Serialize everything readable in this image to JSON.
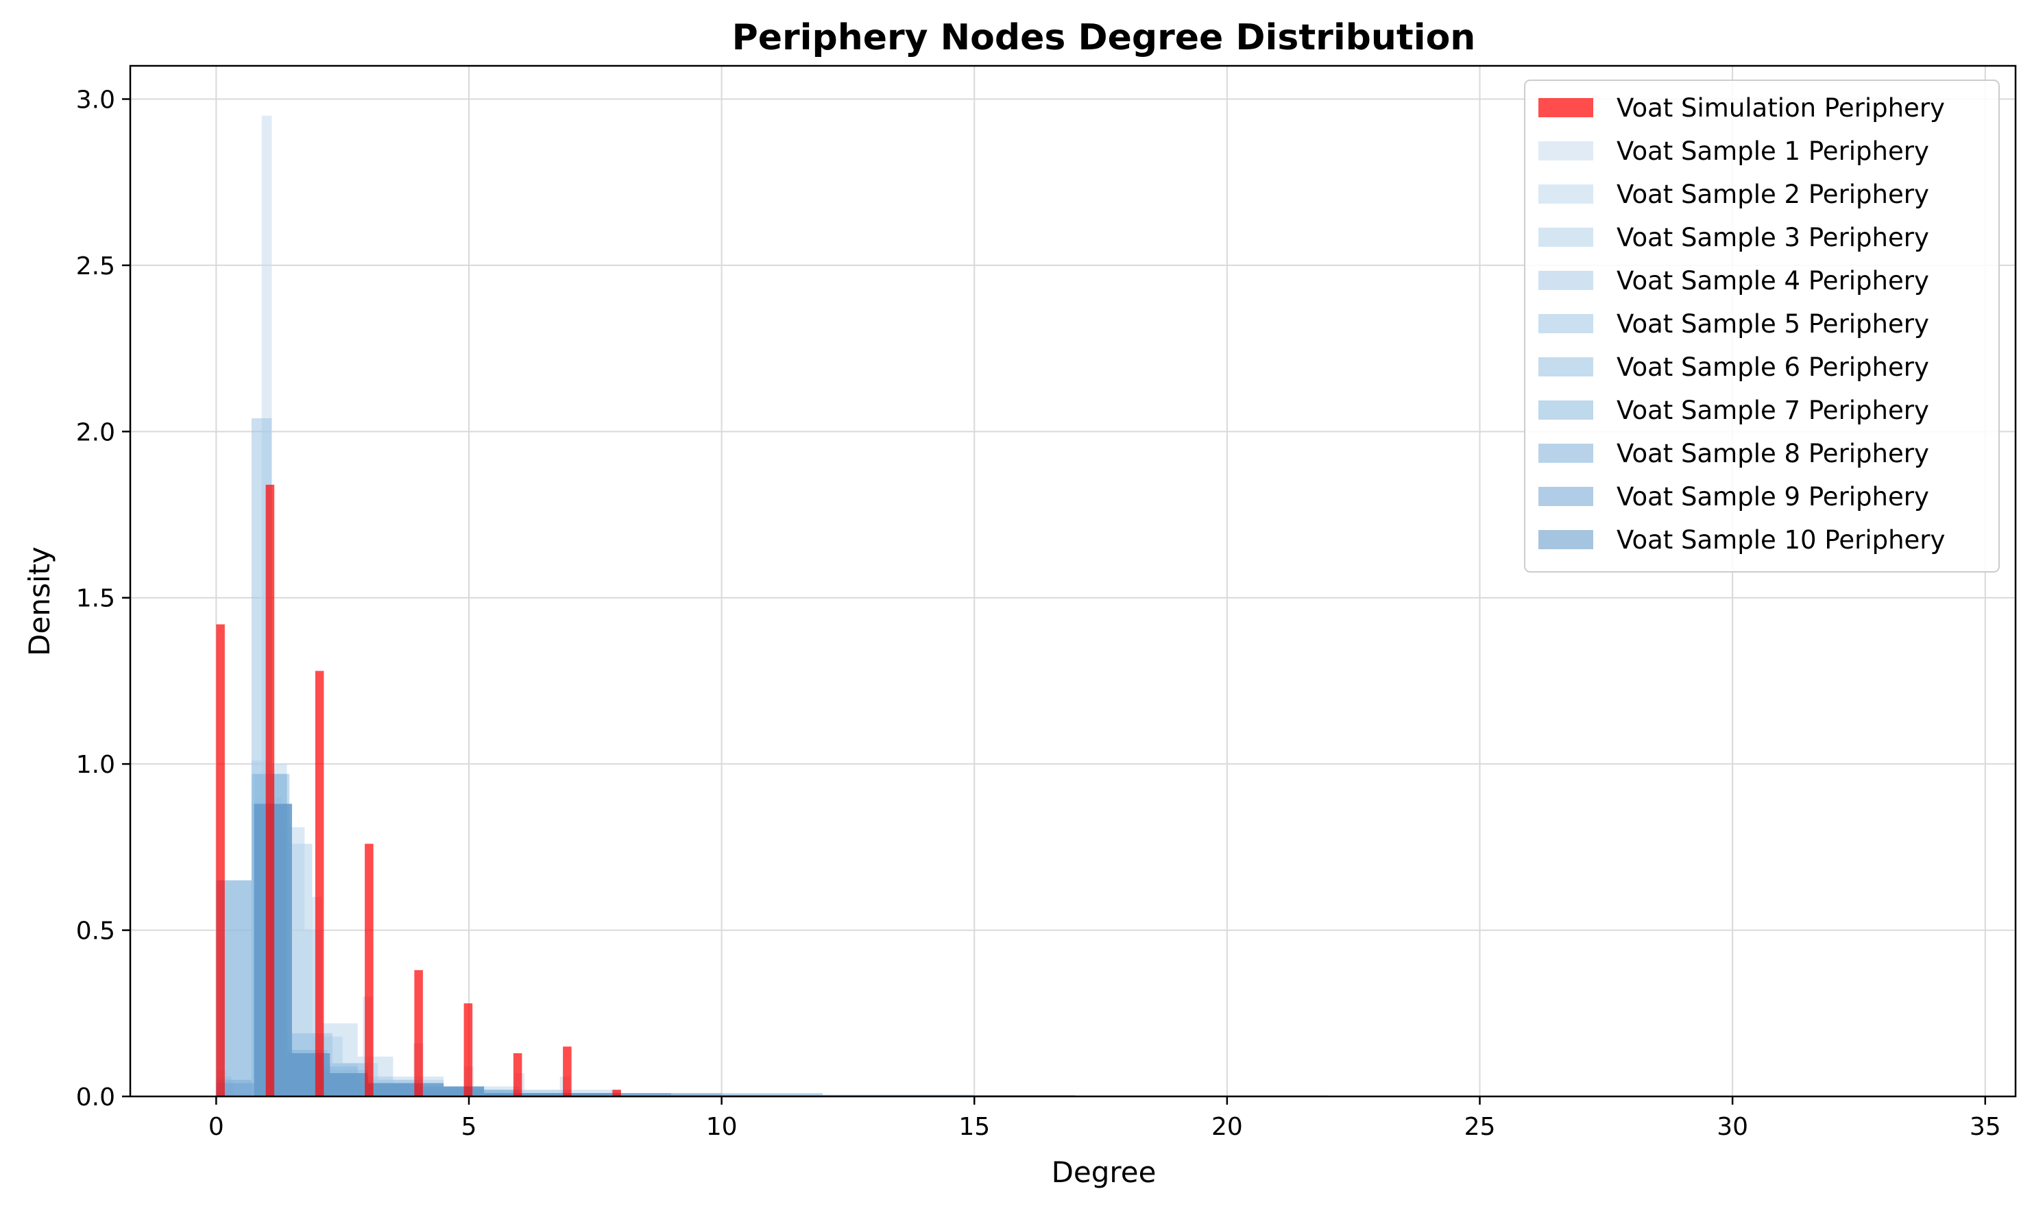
{
  "chart_data": {
    "type": "bar",
    "title": "Periphery Nodes Degree Distribution",
    "xlabel": "Degree",
    "ylabel": "Density",
    "xlim": [
      -1.7,
      35.6
    ],
    "ylim": [
      0,
      3.1
    ],
    "xticks": [
      0,
      5,
      10,
      15,
      20,
      25,
      30,
      35
    ],
    "xtick_labels": [
      "0",
      "5",
      "10",
      "15",
      "20",
      "25",
      "30",
      "35"
    ],
    "yticks": [
      0,
      0.5,
      1,
      1.5,
      2,
      2.5,
      3
    ],
    "ytick_labels": [
      "0.0",
      "0.5",
      "1.0",
      "1.5",
      "2.0",
      "2.5",
      "3.0"
    ],
    "grid": true,
    "legend_position": "top-right",
    "series": [
      {
        "name": "Voat Simulation Periphery",
        "color": "#ff0000",
        "alpha": 0.7,
        "bins": [
          {
            "x0": 0.0,
            "x1": 0.17,
            "y": 1.42
          },
          {
            "x0": 0.98,
            "x1": 1.15,
            "y": 1.84
          },
          {
            "x0": 1.96,
            "x1": 2.13,
            "y": 1.28
          },
          {
            "x0": 2.94,
            "x1": 3.11,
            "y": 0.76
          },
          {
            "x0": 3.92,
            "x1": 4.09,
            "y": 0.38
          },
          {
            "x0": 4.9,
            "x1": 5.07,
            "y": 0.28
          },
          {
            "x0": 5.88,
            "x1": 6.05,
            "y": 0.13
          },
          {
            "x0": 6.86,
            "x1": 7.03,
            "y": 0.15
          },
          {
            "x0": 7.84,
            "x1": 8.01,
            "y": 0.02
          }
        ]
      },
      {
        "name": "Voat Sample 1 Periphery",
        "color": "#c6dbef",
        "alpha": 0.55,
        "bins": [
          {
            "x0": 0.0,
            "x1": 0.2,
            "y": 0.08
          },
          {
            "x0": 0.9,
            "x1": 1.1,
            "y": 2.95
          },
          {
            "x0": 1.9,
            "x1": 2.1,
            "y": 0.6
          },
          {
            "x0": 2.9,
            "x1": 3.1,
            "y": 0.3
          },
          {
            "x0": 3.9,
            "x1": 4.1,
            "y": 0.16
          },
          {
            "x0": 4.9,
            "x1": 5.1,
            "y": 0.09
          },
          {
            "x0": 5.9,
            "x1": 6.1,
            "y": 0.07
          },
          {
            "x0": 6.8,
            "x1": 7.0,
            "y": 0.06
          },
          {
            "x0": 7.8,
            "x1": 8.0,
            "y": 0.02
          }
        ]
      },
      {
        "name": "Voat Sample 2 Periphery",
        "color": "#bdd7ec",
        "alpha": 0.55,
        "bins": [
          {
            "x0": 0.0,
            "x1": 0.35,
            "y": 0.05
          },
          {
            "x0": 0.7,
            "x1": 1.05,
            "y": 1.01
          },
          {
            "x0": 1.05,
            "x1": 1.4,
            "y": 1.0
          },
          {
            "x0": 1.4,
            "x1": 1.75,
            "y": 0.81
          },
          {
            "x0": 1.75,
            "x1": 2.1,
            "y": 0.5
          },
          {
            "x0": 2.1,
            "x1": 2.45,
            "y": 0.22
          },
          {
            "x0": 2.45,
            "x1": 2.8,
            "y": 0.22
          },
          {
            "x0": 2.8,
            "x1": 3.5,
            "y": 0.12
          },
          {
            "x0": 3.5,
            "x1": 4.5,
            "y": 0.06
          },
          {
            "x0": 4.5,
            "x1": 6.0,
            "y": 0.03
          },
          {
            "x0": 6.0,
            "x1": 8.0,
            "y": 0.02
          },
          {
            "x0": 8.0,
            "x1": 10.0,
            "y": 0.01
          }
        ]
      },
      {
        "name": "Voat Sample 3 Periphery",
        "color": "#b3d1ea",
        "alpha": 0.55,
        "bins": [
          {
            "x0": 0.8,
            "x1": 1.3,
            "y": 0.9
          },
          {
            "x0": 1.3,
            "x1": 1.9,
            "y": 0.76
          },
          {
            "x0": 1.9,
            "x1": 2.5,
            "y": 0.18
          },
          {
            "x0": 2.5,
            "x1": 3.2,
            "y": 0.1
          },
          {
            "x0": 3.2,
            "x1": 4.5,
            "y": 0.05
          },
          {
            "x0": 4.5,
            "x1": 7.0,
            "y": 0.02
          },
          {
            "x0": 7.0,
            "x1": 9.0,
            "y": 0.01
          }
        ]
      },
      {
        "name": "Voat Sample 4 Periphery",
        "color": "#a9cbe6",
        "alpha": 0.55,
        "bins": [
          {
            "x0": 0.0,
            "x1": 0.7,
            "y": 0.65
          },
          {
            "x0": 0.7,
            "x1": 1.4,
            "y": 0.88
          },
          {
            "x0": 1.4,
            "x1": 2.1,
            "y": 0.19
          },
          {
            "x0": 2.1,
            "x1": 2.8,
            "y": 0.1
          },
          {
            "x0": 2.8,
            "x1": 3.5,
            "y": 0.06
          },
          {
            "x0": 3.5,
            "x1": 5.0,
            "y": 0.03
          },
          {
            "x0": 5.0,
            "x1": 9.0,
            "y": 0.01
          }
        ]
      },
      {
        "name": "Voat Sample 5 Periphery",
        "color": "#9ec5e3",
        "alpha": 0.55,
        "bins": [
          {
            "x0": 0.0,
            "x1": 0.3,
            "y": 0.06
          },
          {
            "x0": 0.7,
            "x1": 1.1,
            "y": 2.04
          },
          {
            "x0": 1.1,
            "x1": 1.5,
            "y": 0.88
          },
          {
            "x0": 1.5,
            "x1": 2.3,
            "y": 0.19
          },
          {
            "x0": 2.3,
            "x1": 3.0,
            "y": 0.1
          },
          {
            "x0": 3.0,
            "x1": 4.0,
            "y": 0.05
          },
          {
            "x0": 4.0,
            "x1": 6.0,
            "y": 0.02
          },
          {
            "x0": 6.0,
            "x1": 9.0,
            "y": 0.01
          }
        ]
      },
      {
        "name": "Voat Sample 6 Periphery",
        "color": "#93bfe0",
        "alpha": 0.55,
        "bins": [
          {
            "x0": 0.75,
            "x1": 1.45,
            "y": 0.97
          },
          {
            "x0": 1.45,
            "x1": 2.2,
            "y": 0.14
          },
          {
            "x0": 2.2,
            "x1": 3.0,
            "y": 0.08
          },
          {
            "x0": 3.0,
            "x1": 4.0,
            "y": 0.04
          },
          {
            "x0": 4.0,
            "x1": 6.0,
            "y": 0.02
          },
          {
            "x0": 6.0,
            "x1": 10.0,
            "y": 0.01
          }
        ]
      },
      {
        "name": "Voat Sample 7 Periphery",
        "color": "#88b8dc",
        "alpha": 0.55,
        "bins": [
          {
            "x0": 0.0,
            "x1": 0.7,
            "y": 0.65
          },
          {
            "x0": 0.7,
            "x1": 1.4,
            "y": 0.97
          },
          {
            "x0": 1.4,
            "x1": 2.1,
            "y": 0.14
          },
          {
            "x0": 2.1,
            "x1": 2.8,
            "y": 0.09
          },
          {
            "x0": 2.8,
            "x1": 4.0,
            "y": 0.04
          },
          {
            "x0": 4.0,
            "x1": 6.0,
            "y": 0.02
          },
          {
            "x0": 6.0,
            "x1": 12.0,
            "y": 0.01
          }
        ]
      },
      {
        "name": "Voat Sample 8 Periphery",
        "color": "#7daed7",
        "alpha": 0.55,
        "bins": [
          {
            "x0": 0.0,
            "x1": 0.7,
            "y": 0.05
          },
          {
            "x0": 0.75,
            "x1": 1.4,
            "y": 0.88
          },
          {
            "x0": 1.4,
            "x1": 2.1,
            "y": 0.13
          },
          {
            "x0": 2.1,
            "x1": 3.0,
            "y": 0.07
          },
          {
            "x0": 3.0,
            "x1": 4.0,
            "y": 0.04
          },
          {
            "x0": 4.0,
            "x1": 5.3,
            "y": 0.03
          },
          {
            "x0": 5.3,
            "x1": 8.0,
            "y": 0.01
          },
          {
            "x0": 8.0,
            "x1": 15.0,
            "y": 0.005
          }
        ]
      },
      {
        "name": "Voat Sample 9 Periphery",
        "color": "#6fa3d2",
        "alpha": 0.55,
        "bins": [
          {
            "x0": 0.0,
            "x1": 0.75,
            "y": 0.04
          },
          {
            "x0": 0.75,
            "x1": 1.5,
            "y": 0.88
          },
          {
            "x0": 1.5,
            "x1": 2.25,
            "y": 0.13
          },
          {
            "x0": 2.25,
            "x1": 3.0,
            "y": 0.07
          },
          {
            "x0": 3.0,
            "x1": 4.5,
            "y": 0.04
          },
          {
            "x0": 4.5,
            "x1": 5.3,
            "y": 0.03
          },
          {
            "x0": 5.3,
            "x1": 9.0,
            "y": 0.01
          },
          {
            "x0": 9.0,
            "x1": 17.0,
            "y": 0.004
          }
        ]
      },
      {
        "name": "Voat Sample 10 Periphery",
        "color": "#5b93c4",
        "alpha": 0.55,
        "bins": [
          {
            "x0": 0.75,
            "x1": 1.5,
            "y": 0.88
          },
          {
            "x0": 1.5,
            "x1": 2.25,
            "y": 0.13
          },
          {
            "x0": 2.25,
            "x1": 3.0,
            "y": 0.07
          },
          {
            "x0": 3.0,
            "x1": 4.5,
            "y": 0.04
          },
          {
            "x0": 4.5,
            "x1": 5.3,
            "y": 0.03
          },
          {
            "x0": 5.3,
            "x1": 8.0,
            "y": 0.01
          },
          {
            "x0": 8.0,
            "x1": 22.0,
            "y": 0.003
          }
        ]
      }
    ]
  }
}
